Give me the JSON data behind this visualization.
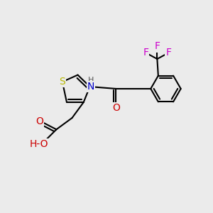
{
  "bg_color": "#ebebeb",
  "bond_color": "#000000",
  "bond_width": 1.5,
  "atoms": {
    "S": {
      "color": "#b8b800",
      "fontsize": 10
    },
    "N": {
      "color": "#0000cc",
      "fontsize": 10
    },
    "O": {
      "color": "#cc0000",
      "fontsize": 10
    },
    "F": {
      "color": "#cc00cc",
      "fontsize": 10
    },
    "H": {
      "color": "#000000",
      "fontsize": 9
    }
  },
  "figsize": [
    3.0,
    3.0
  ],
  "dpi": 100,
  "xlim": [
    0,
    10
  ],
  "ylim": [
    0,
    10
  ]
}
